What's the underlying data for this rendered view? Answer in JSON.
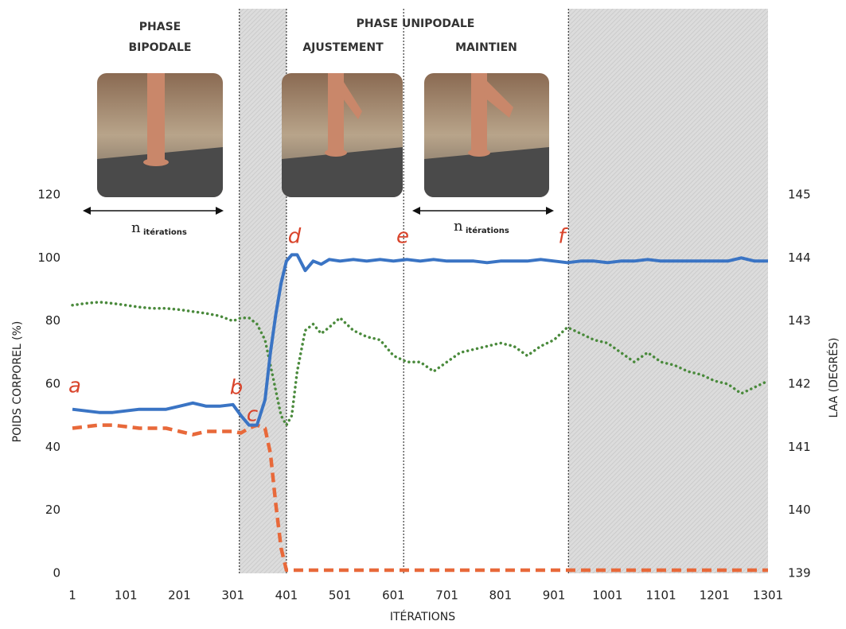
{
  "chart_data": {
    "type": "line",
    "phase_labels": [
      "PHASE",
      "BIPODALE",
      "PHASE UNIPODALE",
      "AJUSTEMENT",
      "MAINTIEN"
    ],
    "iteration_labels": [
      {
        "n": "n",
        "sub": "itérations"
      },
      {
        "n": "n",
        "sub": "itérations"
      }
    ],
    "annotations": [
      "a",
      "b",
      "c",
      "d",
      "e",
      "f"
    ],
    "ylabel": "POIDS CORPOREL (%)",
    "y2label": "LAA (DEGRÉS)",
    "xlabel": "ITÉRATIONS",
    "xlim": [
      1,
      1301
    ],
    "xticks": [
      1,
      101,
      201,
      301,
      401,
      501,
      601,
      701,
      801,
      901,
      1001,
      1101,
      1201,
      1301
    ],
    "ylim": [
      0,
      120
    ],
    "yticks": [
      0,
      20,
      40,
      60,
      80,
      100,
      120
    ],
    "y2lim": [
      139,
      145
    ],
    "y2ticks": [
      139,
      140,
      141,
      142,
      143,
      144,
      145
    ],
    "shaded_regions": [
      [
        313,
        401
      ],
      [
        928,
        1301
      ]
    ],
    "phase_markers": [
      313,
      401,
      620,
      928
    ],
    "x": [
      1,
      26,
      51,
      76,
      101,
      126,
      151,
      176,
      201,
      226,
      251,
      276,
      301,
      316,
      331,
      346,
      361,
      371,
      381,
      391,
      401,
      411,
      421,
      436,
      451,
      466,
      481,
      501,
      526,
      551,
      576,
      601,
      626,
      651,
      676,
      701,
      726,
      751,
      776,
      801,
      826,
      851,
      876,
      901,
      926,
      951,
      976,
      1001,
      1026,
      1051,
      1076,
      1101,
      1126,
      1151,
      1176,
      1201,
      1226,
      1251,
      1276,
      1301
    ],
    "series": [
      {
        "color": "#3a74c4",
        "style": "solid",
        "values": [
          52,
          51.5,
          51,
          51,
          51.5,
          52,
          52,
          52,
          53,
          54,
          53,
          53,
          53.5,
          50,
          47,
          47,
          55,
          70,
          82,
          92,
          99,
          101,
          101,
          96,
          99,
          98,
          99.5,
          99,
          99.5,
          99,
          99.5,
          99,
          99.5,
          99,
          99.5,
          99,
          99,
          99,
          98.5,
          99,
          99,
          99,
          99.5,
          99,
          98.5,
          99,
          99,
          98.5,
          99,
          99,
          99.5,
          99,
          99,
          99,
          99,
          99,
          99,
          100,
          99,
          99
        ]
      },
      {
        "color": "#e8693a",
        "style": "dashed",
        "values": [
          46,
          46.5,
          47,
          47,
          46.5,
          46,
          46,
          46,
          45,
          44,
          45,
          45,
          45,
          44.5,
          46,
          47,
          46,
          38,
          22,
          8,
          1,
          1,
          1,
          1,
          1,
          1,
          1,
          1,
          1,
          1,
          1,
          1,
          1,
          1,
          1,
          1,
          1,
          1,
          1,
          1,
          1,
          1,
          1,
          1,
          1,
          1,
          1,
          1,
          1,
          1,
          1,
          1,
          1,
          1,
          1,
          1,
          1,
          1,
          1,
          1
        ]
      },
      {
        "color": "#4a8a3c",
        "style": "dotted",
        "axis": "y2",
        "values": [
          143.25,
          143.28,
          143.3,
          143.28,
          143.25,
          143.22,
          143.2,
          143.2,
          143.18,
          143.15,
          143.12,
          143.08,
          143.0,
          143.05,
          143.05,
          142.95,
          142.7,
          142.3,
          141.9,
          141.5,
          141.35,
          141.5,
          142.2,
          142.85,
          142.95,
          142.8,
          142.9,
          143.05,
          142.85,
          142.75,
          142.7,
          142.45,
          142.35,
          142.35,
          142.2,
          142.35,
          142.5,
          142.55,
          142.6,
          142.65,
          142.6,
          142.45,
          142.6,
          142.7,
          142.9,
          142.8,
          142.7,
          142.65,
          142.5,
          142.35,
          142.5,
          142.35,
          142.3,
          142.2,
          142.15,
          142.05,
          142.0,
          141.85,
          141.95,
          142.05
        ]
      }
    ]
  }
}
